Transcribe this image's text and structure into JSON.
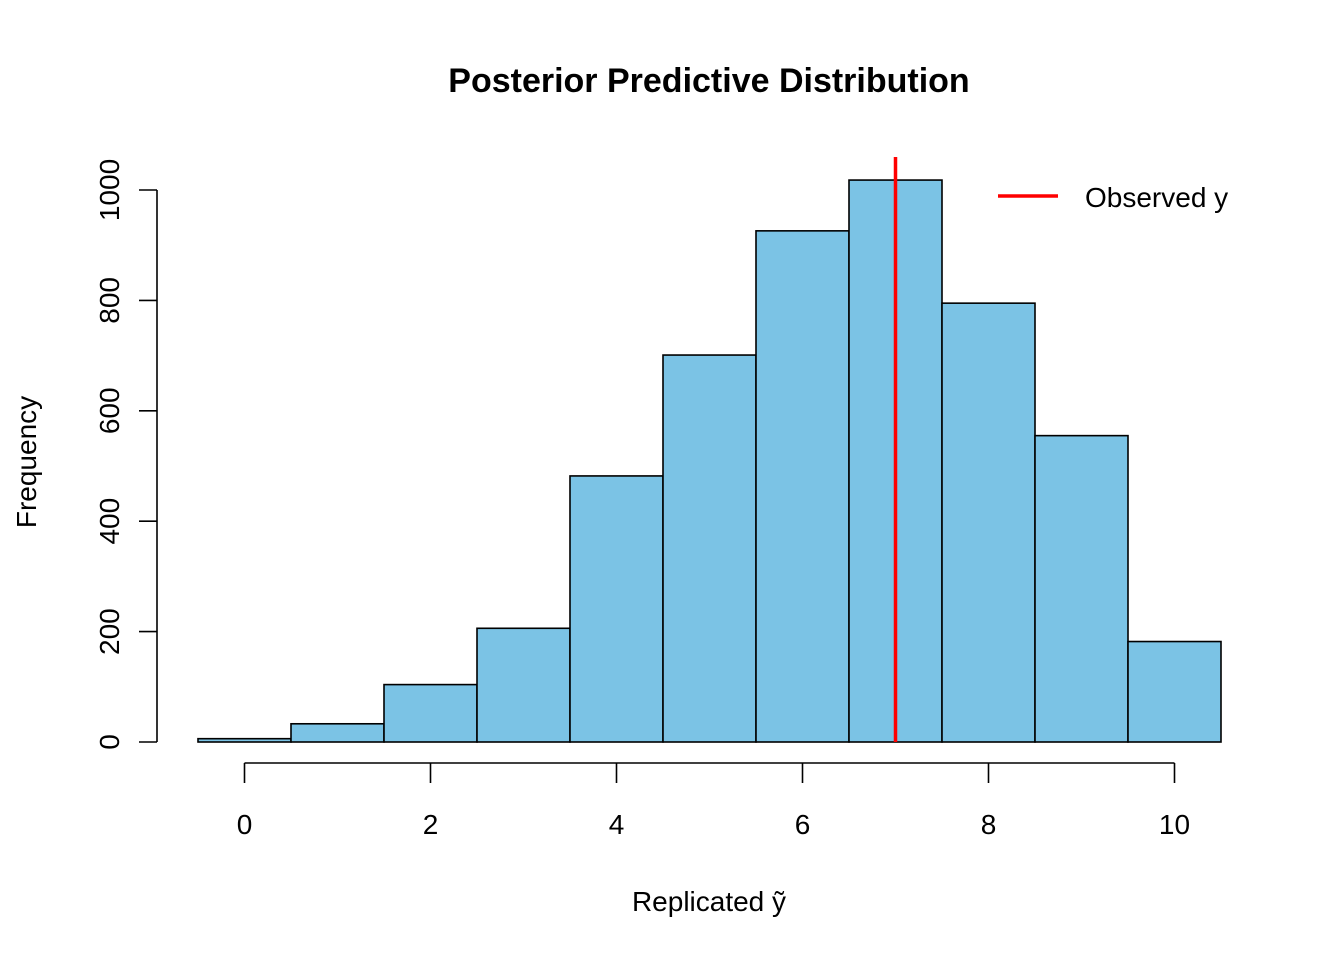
{
  "chart_data": {
    "type": "bar",
    "title": "Posterior Predictive Distribution",
    "xlabel": "Replicated ỹ",
    "ylabel": "Frequency",
    "bins": [
      {
        "x0": -0.5,
        "x1": 0.5,
        "value": 6
      },
      {
        "x0": 0.5,
        "x1": 1.5,
        "value": 33
      },
      {
        "x0": 1.5,
        "x1": 2.5,
        "value": 104
      },
      {
        "x0": 2.5,
        "x1": 3.5,
        "value": 206
      },
      {
        "x0": 3.5,
        "x1": 4.5,
        "value": 482
      },
      {
        "x0": 4.5,
        "x1": 5.5,
        "value": 701
      },
      {
        "x0": 5.5,
        "x1": 6.5,
        "value": 926
      },
      {
        "x0": 6.5,
        "x1": 7.5,
        "value": 1018
      },
      {
        "x0": 7.5,
        "x1": 8.5,
        "value": 795
      },
      {
        "x0": 8.5,
        "x1": 9.5,
        "value": 555
      },
      {
        "x0": 9.5,
        "x1": 10.5,
        "value": 182
      }
    ],
    "xticks": [
      "0",
      "2",
      "4",
      "6",
      "8",
      "10"
    ],
    "yticks": [
      "0",
      "200",
      "400",
      "600",
      "800",
      "1000"
    ],
    "xlim": [
      -0.5,
      10.5
    ],
    "ylim": [
      0,
      1000
    ],
    "observed_y": 7,
    "legend": {
      "label": "Observed y",
      "position": "top-right"
    },
    "colors": {
      "bar_fill": "#7bc3e5",
      "bar_edge": "#000000",
      "observed_line": "#ff0000"
    },
    "grid": false
  }
}
